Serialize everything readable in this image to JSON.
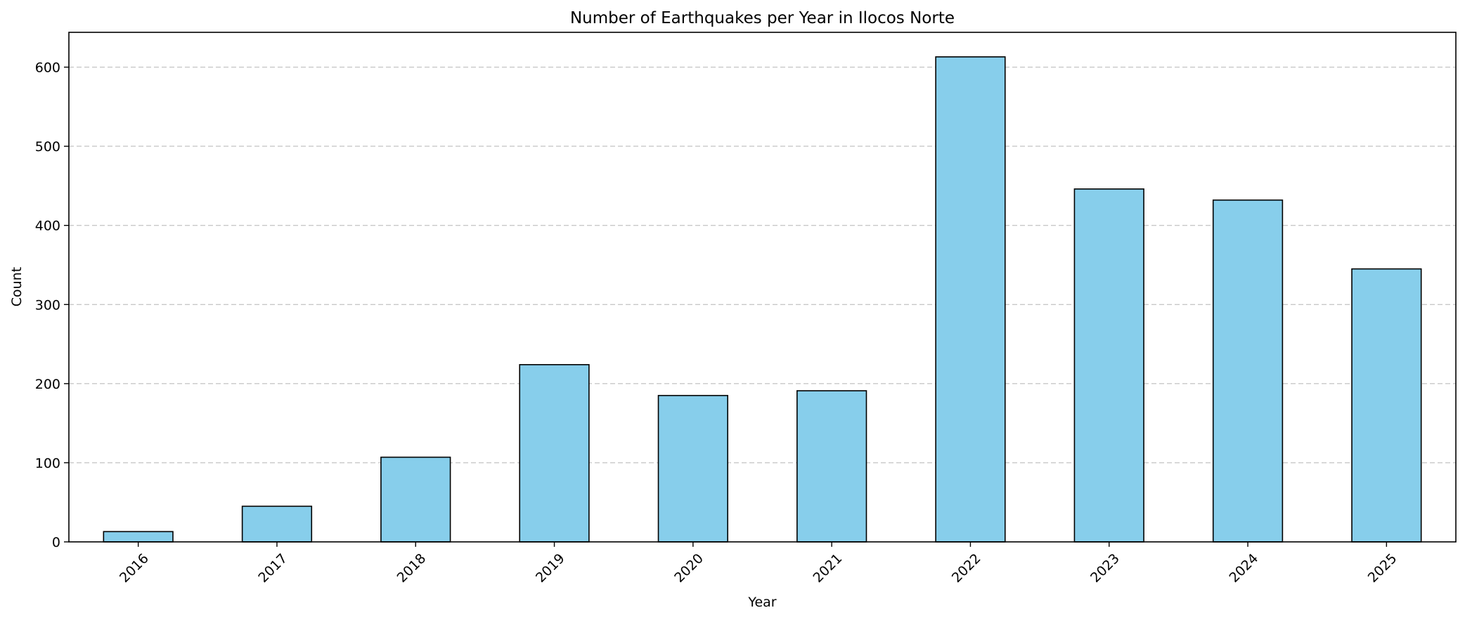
{
  "chart_data": {
    "type": "bar",
    "title": "Number of Earthquakes per Year in Ilocos Norte",
    "xlabel": "Year",
    "ylabel": "Count",
    "categories": [
      "2016",
      "2017",
      "2018",
      "2019",
      "2020",
      "2021",
      "2022",
      "2023",
      "2024",
      "2025"
    ],
    "values": [
      13,
      45,
      107,
      224,
      185,
      191,
      613,
      446,
      432,
      345
    ],
    "ylim": [
      0,
      644
    ],
    "yticks": [
      0,
      100,
      200,
      300,
      400,
      500,
      600
    ],
    "grid": "y-axis dashed",
    "legend": "none",
    "colors": {
      "bar_fill": "#87CEEB",
      "bar_edge": "#000000",
      "grid": "#c8c8c8"
    }
  }
}
